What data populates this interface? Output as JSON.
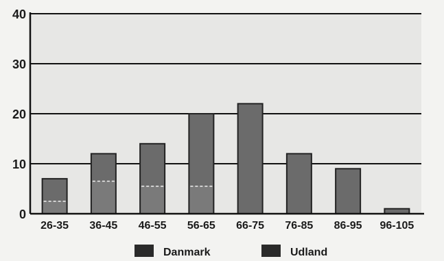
{
  "chart_data": {
    "type": "bar",
    "categories": [
      "26-35",
      "36-45",
      "46-55",
      "56-65",
      "66-75",
      "76-85",
      "86-95",
      "96-105"
    ],
    "series": [
      {
        "name": "Danmark",
        "values": [
          2.5,
          6.5,
          5.5,
          5.5,
          0,
          0,
          0,
          0
        ],
        "color": "#7a7a7a"
      },
      {
        "name": "Udland",
        "values": [
          4.5,
          5.5,
          8.5,
          14.5,
          22,
          12,
          9,
          1
        ],
        "color": "#6b6b6b"
      }
    ],
    "stacked": true,
    "y_ticks": [
      0,
      10,
      20,
      30,
      40
    ],
    "ylim": [
      0,
      40
    ],
    "grid": true,
    "legend_position": "bottom",
    "title": "",
    "xlabel": "",
    "ylabel": ""
  },
  "colors": {
    "plot_background": "#e7e7e5",
    "gridline": "#111111",
    "bar_edge": "#222222",
    "legend_swatch": "#2a2a2a"
  }
}
